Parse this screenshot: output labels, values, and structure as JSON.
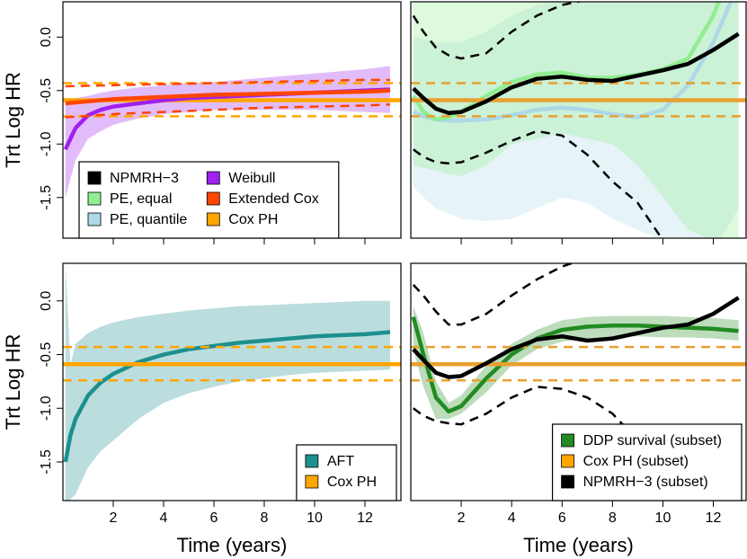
{
  "chart_data": [
    {
      "type": "line",
      "ylabel": "Trt Log HR",
      "xlim": [
        0,
        13.43
      ],
      "ylim": [
        -1.88,
        0.33
      ],
      "xticks": [
        2,
        4,
        6,
        8,
        10,
        12
      ],
      "yticks": [
        {
          "value": 0,
          "label": "0.0"
        },
        -0.5,
        {
          "value": -1,
          "label": "-1.0"
        },
        -1.5
      ],
      "x": [
        0.1,
        0.5,
        1,
        1.5,
        2,
        3,
        4,
        5,
        6,
        7,
        8,
        9,
        10,
        11,
        12,
        13
      ],
      "legend": {
        "position": "bottomleft",
        "ncol": 2,
        "entries": [
          {
            "name": "NPMRH−3",
            "color": "#000000"
          },
          {
            "name": "PE, equal",
            "color": "#90ee90"
          },
          {
            "name": "PE, quantile",
            "color": "#add8e6"
          },
          {
            "name": "Weibull",
            "color": "#a020f0"
          },
          {
            "name": "Extended Cox",
            "color": "#ff4500"
          },
          {
            "name": "Cox PH",
            "color": "#ffa500"
          }
        ]
      },
      "series": [
        {
          "color": "#ffa500",
          "x": [
            0,
            13.43
          ],
          "values": [
            -0.59,
            -0.59
          ],
          "ci": {
            "lower": [
              -0.74,
              -0.74
            ],
            "upper": [
              -0.43,
              -0.43
            ]
          }
        },
        {
          "color": "#a020f0",
          "values": [
            -1.05,
            -0.85,
            -0.73,
            -0.68,
            -0.65,
            -0.62,
            -0.59,
            -0.57,
            -0.56,
            -0.55,
            -0.54,
            -0.53,
            -0.52,
            -0.51,
            -0.5,
            -0.49
          ],
          "band": {
            "lower": [
              -1.5,
              -1.15,
              -0.95,
              -0.88,
              -0.82,
              -0.76,
              -0.72,
              -0.7,
              -0.68,
              -0.68,
              -0.68,
              -0.68,
              -0.68,
              -0.69,
              -0.7,
              -0.71
            ],
            "upper": [
              -0.6,
              -0.57,
              -0.55,
              -0.52,
              -0.5,
              -0.47,
              -0.45,
              -0.43,
              -0.42,
              -0.4,
              -0.38,
              -0.36,
              -0.34,
              -0.32,
              -0.3,
              -0.27
            ]
          }
        },
        {
          "color": "#ff4500",
          "x": [
            0.1,
            2,
            4,
            6,
            8,
            10,
            12,
            13
          ],
          "values": [
            -0.62,
            -0.58,
            -0.56,
            -0.54,
            -0.53,
            -0.52,
            -0.51,
            -0.5
          ],
          "ci": {
            "lower": [
              -0.75,
              -0.72,
              -0.7,
              -0.68,
              -0.66,
              -0.65,
              -0.64,
              -0.63
            ],
            "upper": [
              -0.46,
              -0.45,
              -0.44,
              -0.43,
              -0.42,
              -0.41,
              -0.4,
              -0.4
            ]
          }
        }
      ]
    },
    {
      "type": "line",
      "xlim": [
        0,
        13.3
      ],
      "ylim": [
        -1.88,
        0.33
      ],
      "xticks": [
        2,
        4,
        6,
        8,
        10,
        12
      ],
      "x": [
        0.1,
        0.5,
        1,
        1.5,
        2,
        3,
        4,
        5,
        6,
        7,
        8,
        9,
        10,
        11,
        12,
        13
      ],
      "series": [
        {
          "color": "#add8e6",
          "values": [
            -0.7,
            -0.74,
            -0.77,
            -0.78,
            -0.78,
            -0.77,
            -0.73,
            -0.68,
            -0.66,
            -0.68,
            -0.72,
            -0.75,
            -0.68,
            -0.45,
            -0.05,
            0.5
          ],
          "band": {
            "lower": [
              -1.4,
              -1.5,
              -1.6,
              -1.65,
              -1.7,
              -1.72,
              -1.7,
              -1.6,
              -1.5,
              -1.55,
              -1.7,
              -1.8,
              -1.9,
              -2,
              -2,
              -1.6
            ],
            "upper": [
              0,
              -0.02,
              -0.05,
              -0.05,
              -0.05,
              0.05,
              0.2,
              0.3,
              0.35,
              0.4,
              0.4,
              0.4,
              0.4,
              0.4,
              0.4,
              0.4
            ]
          }
        },
        {
          "color": "#90ee90",
          "values": [
            -0.55,
            -0.7,
            -0.77,
            -0.75,
            -0.7,
            -0.55,
            -0.42,
            -0.35,
            -0.33,
            -0.38,
            -0.38,
            -0.35,
            -0.3,
            -0.2,
            0.2,
            0.8
          ],
          "band": {
            "lower": [
              -1.2,
              -1.22,
              -1.25,
              -1.28,
              -1.3,
              -1.2,
              -1,
              -0.95,
              -0.9,
              -0.95,
              -1,
              -1.2,
              -1.5,
              -1.8,
              -1.9,
              -1.9
            ],
            "upper": [
              0.4,
              0.4,
              0.4,
              0.4,
              0.4,
              0.4,
              0.4,
              0.4,
              0.4,
              0.4,
              0.4,
              0.4,
              0.4,
              0.4,
              0.4,
              0.4
            ]
          }
        },
        {
          "color": "#e8a030",
          "x": [
            0,
            13.3
          ],
          "values": [
            -0.59,
            -0.59
          ],
          "ci": {
            "lower": [
              -0.74,
              -0.74
            ],
            "upper": [
              -0.43,
              -0.43
            ]
          }
        },
        {
          "color": "#000000",
          "values": [
            -0.48,
            -0.57,
            -0.67,
            -0.71,
            -0.7,
            -0.6,
            -0.47,
            -0.39,
            -0.37,
            -0.4,
            -0.41,
            -0.36,
            -0.31,
            -0.25,
            -0.12,
            0.03
          ],
          "ci": {
            "lower": [
              -1.05,
              -1.12,
              -1.17,
              -1.18,
              -1.17,
              -1.08,
              -0.97,
              -0.88,
              -0.92,
              -1.1,
              -1.35,
              -1.55,
              -1.9,
              -2.2,
              -2.5,
              -2.8
            ],
            "upper": [
              0.2,
              0.05,
              -0.1,
              -0.17,
              -0.2,
              -0.15,
              0.05,
              0.2,
              0.3,
              0.35,
              0.4,
              0.45,
              0.5,
              0.55,
              0.6,
              0.65
            ]
          }
        }
      ]
    },
    {
      "type": "line",
      "ylabel": "Trt Log HR",
      "xlabel": "Time (years)",
      "xlim": [
        0,
        13.43
      ],
      "ylim": [
        -1.86,
        0.35
      ],
      "xticks": [
        2,
        4,
        6,
        8,
        10,
        12
      ],
      "yticks": [
        {
          "value": 0,
          "label": "0.0"
        },
        -0.5,
        {
          "value": -1,
          "label": "-1.0"
        },
        -1.5
      ],
      "x": [
        0.1,
        0.3,
        0.5,
        1,
        1.5,
        2,
        3,
        4,
        5,
        6,
        7,
        8,
        9,
        10,
        11,
        12,
        13
      ],
      "legend": {
        "position": "bottomright",
        "ncol": 1,
        "entries": [
          {
            "name": "AFT",
            "color": "#1e8f8f"
          },
          {
            "name": "Cox PH",
            "color": "#ffa500"
          }
        ]
      },
      "series": [
        {
          "color": "#1e8f8f",
          "values": [
            -1.5,
            -1.25,
            -1.1,
            -0.88,
            -0.76,
            -0.68,
            -0.57,
            -0.5,
            -0.45,
            -0.42,
            -0.39,
            -0.37,
            -0.35,
            -0.33,
            -0.32,
            -0.31,
            -0.29
          ],
          "band": {
            "lower": [
              -1.9,
              -1.85,
              -1.8,
              -1.55,
              -1.4,
              -1.3,
              -1.1,
              -0.95,
              -0.86,
              -0.8,
              -0.75,
              -0.72,
              -0.69,
              -0.67,
              -0.66,
              -0.65,
              -0.64
            ],
            "upper": [
              0.35,
              -0.6,
              -0.4,
              -0.3,
              -0.24,
              -0.2,
              -0.15,
              -0.12,
              -0.09,
              -0.07,
              -0.05,
              -0.04,
              -0.03,
              -0.02,
              -0.01,
              0,
              0
            ]
          }
        },
        {
          "color": "#ffa500",
          "x": [
            0,
            13.43
          ],
          "values": [
            -0.59,
            -0.59
          ],
          "ci": {
            "lower": [
              -0.74,
              -0.74
            ],
            "upper": [
              -0.43,
              -0.43
            ]
          }
        }
      ]
    },
    {
      "type": "line",
      "xlabel": "Time (years)",
      "xlim": [
        0,
        13.3
      ],
      "ylim": [
        -1.86,
        0.35
      ],
      "xticks": [
        2,
        4,
        6,
        8,
        10,
        12
      ],
      "x": [
        0.1,
        0.5,
        1,
        1.5,
        2,
        3,
        4,
        5,
        6,
        7,
        8,
        9,
        10,
        11,
        12,
        13
      ],
      "legend": {
        "position": "bottomright",
        "ncol": 1,
        "entries": [
          {
            "name": "DDP survival (subset)",
            "color": "#228b22"
          },
          {
            "name": "Cox PH (subset)",
            "color": "#ffa500"
          },
          {
            "name": "NPMRH−3 (subset)",
            "color": "#000000"
          }
        ]
      },
      "series": [
        {
          "color": "#228b22",
          "values": [
            -0.15,
            -0.5,
            -0.9,
            -1.03,
            -0.98,
            -0.72,
            -0.5,
            -0.35,
            -0.27,
            -0.24,
            -0.23,
            -0.23,
            -0.24,
            -0.25,
            -0.26,
            -0.28
          ],
          "band": {
            "lower": [
              -0.45,
              -0.8,
              -1.1,
              -1.1,
              -1.05,
              -0.85,
              -0.6,
              -0.45,
              -0.38,
              -0.35,
              -0.33,
              -0.33,
              -0.34,
              -0.34,
              -0.35,
              -0.37
            ],
            "upper": [
              -0.05,
              -0.3,
              -0.75,
              -0.95,
              -0.88,
              -0.6,
              -0.4,
              -0.27,
              -0.18,
              -0.15,
              -0.14,
              -0.14,
              -0.14,
              -0.15,
              -0.16,
              -0.18
            ]
          }
        },
        {
          "color": "#e8a030",
          "x": [
            0,
            13.3
          ],
          "values": [
            -0.59,
            -0.59
          ],
          "ci": {
            "lower": [
              -0.74,
              -0.74
            ],
            "upper": [
              -0.43,
              -0.43
            ]
          }
        },
        {
          "color": "#000000",
          "values": [
            -0.45,
            -0.55,
            -0.67,
            -0.71,
            -0.7,
            -0.58,
            -0.45,
            -0.36,
            -0.33,
            -0.37,
            -0.35,
            -0.3,
            -0.25,
            -0.22,
            -0.12,
            0.03
          ],
          "ci": {
            "lower": [
              -1,
              -1.07,
              -1.12,
              -1.14,
              -1.15,
              -1.05,
              -0.9,
              -0.8,
              -0.82,
              -0.9,
              -1.05,
              -1.3,
              -1.6,
              -1.9,
              -2.2,
              -2.5
            ],
            "upper": [
              0.15,
              0.05,
              -0.1,
              -0.22,
              -0.22,
              -0.12,
              0.05,
              0.2,
              0.32,
              0.4,
              0.45,
              0.5,
              0.55,
              0.6,
              0.65,
              0.7
            ]
          }
        }
      ]
    }
  ]
}
